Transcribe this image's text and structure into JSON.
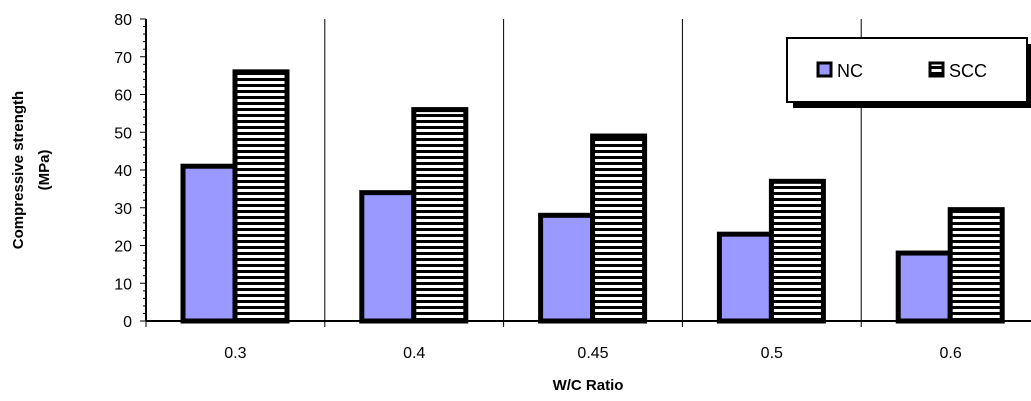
{
  "chart_data": {
    "type": "bar",
    "categories": [
      "0.3",
      "0.4",
      "0.45",
      "0.5",
      "0.6"
    ],
    "series": [
      {
        "name": "NC",
        "values": [
          41,
          34,
          28,
          23,
          18
        ],
        "color": "#9999ff"
      },
      {
        "name": "SCC",
        "values": [
          66,
          56,
          49,
          37,
          29.5
        ],
        "color": "#ffffff",
        "pattern": "horizontal-stripes"
      }
    ],
    "title": "",
    "xlabel": "W/C Ratio",
    "ylabel": "Compressive strength (MPa)",
    "ylabel_lines": [
      "Compressive strength",
      "(MPa)"
    ],
    "ylim": [
      0,
      80
    ],
    "yticks": [
      0,
      10,
      20,
      30,
      40,
      50,
      60,
      70,
      80
    ],
    "grid": {
      "vertical": true,
      "horizontal": false
    },
    "legend": "top-right"
  }
}
